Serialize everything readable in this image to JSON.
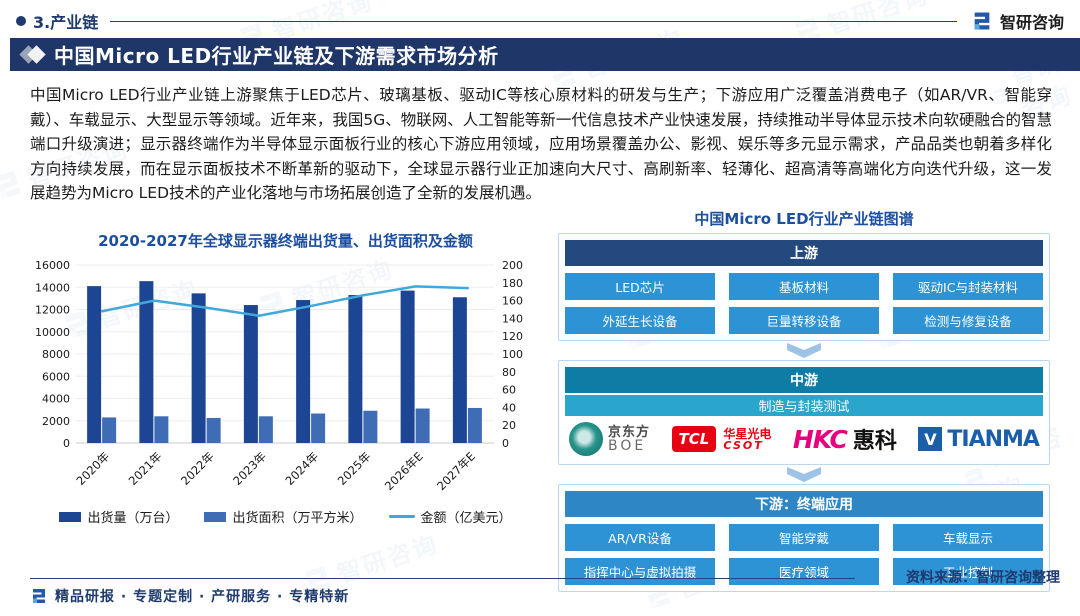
{
  "page": {
    "section_label": "3.产业链",
    "brand": "智研咨询",
    "title": "中国Micro LED行业产业链及下游需求市场分析",
    "paragraph": "中国Micro LED行业产业链上游聚焦于LED芯片、玻璃基板、驱动IC等核心原材料的研发与生产；下游应用广泛覆盖消费电子（如AR/VR、智能穿戴）、车载显示、大型显示等领域。近年来，我国5G、物联网、人工智能等新一代信息技术产业快速发展，持续推动半导体显示技术向软硬融合的智慧端口升级演进；显示器终端作为半导体显示面板行业的核心下游应用领域，应用场景覆盖办公、影视、娱乐等多元显示需求，产品品类也朝着多样化方向持续发展，而在显示面板技术不断革新的驱动下，全球显示器行业正加速向大尺寸、高刷新率、轻薄化、超高清等高端化方向迭代升级，这一发展趋势为Micro LED技术的产业化落地与市场拓展创造了全新的发展机遇。",
    "source_note": "资料来源：智研咨询整理",
    "footer_tagline": "精品研报 · 专题定制 · 产研服务 · 专精特新",
    "watermark_text": "智研咨询"
  },
  "chart_data": {
    "type": "bar",
    "title": "2020-2027年全球显示器终端出货量、出货面积及金额",
    "categories": [
      "2020年",
      "2021年",
      "2022年",
      "2023年",
      "2024年",
      "2025年",
      "2026年E",
      "2027年E"
    ],
    "series": [
      {
        "name": "出货量（万台）",
        "type": "bar",
        "axis": "left",
        "color": "#1C4693",
        "values": [
          14100,
          14550,
          13450,
          12400,
          12850,
          13300,
          13700,
          13100
        ]
      },
      {
        "name": "出货面积（万平方米）",
        "type": "bar",
        "axis": "left",
        "color": "#3F6DB5",
        "values": [
          2300,
          2400,
          2250,
          2400,
          2650,
          2900,
          3100,
          3150
        ]
      },
      {
        "name": "金额（亿美元）",
        "type": "line",
        "axis": "right",
        "color": "#41A8DD",
        "values": [
          148,
          160,
          152,
          143,
          154,
          166,
          176,
          174
        ]
      }
    ],
    "left_axis": {
      "min": 0,
      "max": 16000,
      "step": 2000
    },
    "right_axis": {
      "min": 0,
      "max": 200,
      "step": 20
    },
    "grid": true,
    "legend_position": "bottom"
  },
  "diagram": {
    "title": "中国Micro LED行业产业链图谱",
    "upstream": {
      "header": "上游",
      "items": [
        "LED芯片",
        "基板材料",
        "驱动IC与封装材料",
        "外延生长设备",
        "巨量转移设备",
        "检测与修复设备"
      ]
    },
    "midstream": {
      "header": "中游",
      "subheader": "制造与封装测试",
      "logos": {
        "boe": {
          "cn": "京东方",
          "en": "BOE"
        },
        "tcl": {
          "badge": "TCL",
          "cn": "华星光电",
          "en": "CSOT"
        },
        "hkc": {
          "en": "HKC",
          "cn": "惠科"
        },
        "tianma": {
          "icon": "V",
          "en": "TIANMA"
        }
      }
    },
    "downstream": {
      "header": "下游：终端应用",
      "items": [
        "AR/VR设备",
        "智能穿戴",
        "车载显示",
        "指挥中心与虚拟拍摄",
        "医疗领域",
        "工业控制"
      ]
    }
  },
  "colors": {
    "navy": "#1E3668",
    "accent_blue": "#1D4FA1",
    "upstream_header": "#24497F",
    "item_blue": "#2D93D4",
    "midstream_header": "#0E7CA5",
    "midstream_sub": "#2AA6CC",
    "downstream_header": "#2E86C4",
    "arrow": "#9CC2E5",
    "bar_dark": "#1C4693",
    "bar_light": "#3F6DB5",
    "line_blue": "#41A8DD"
  }
}
